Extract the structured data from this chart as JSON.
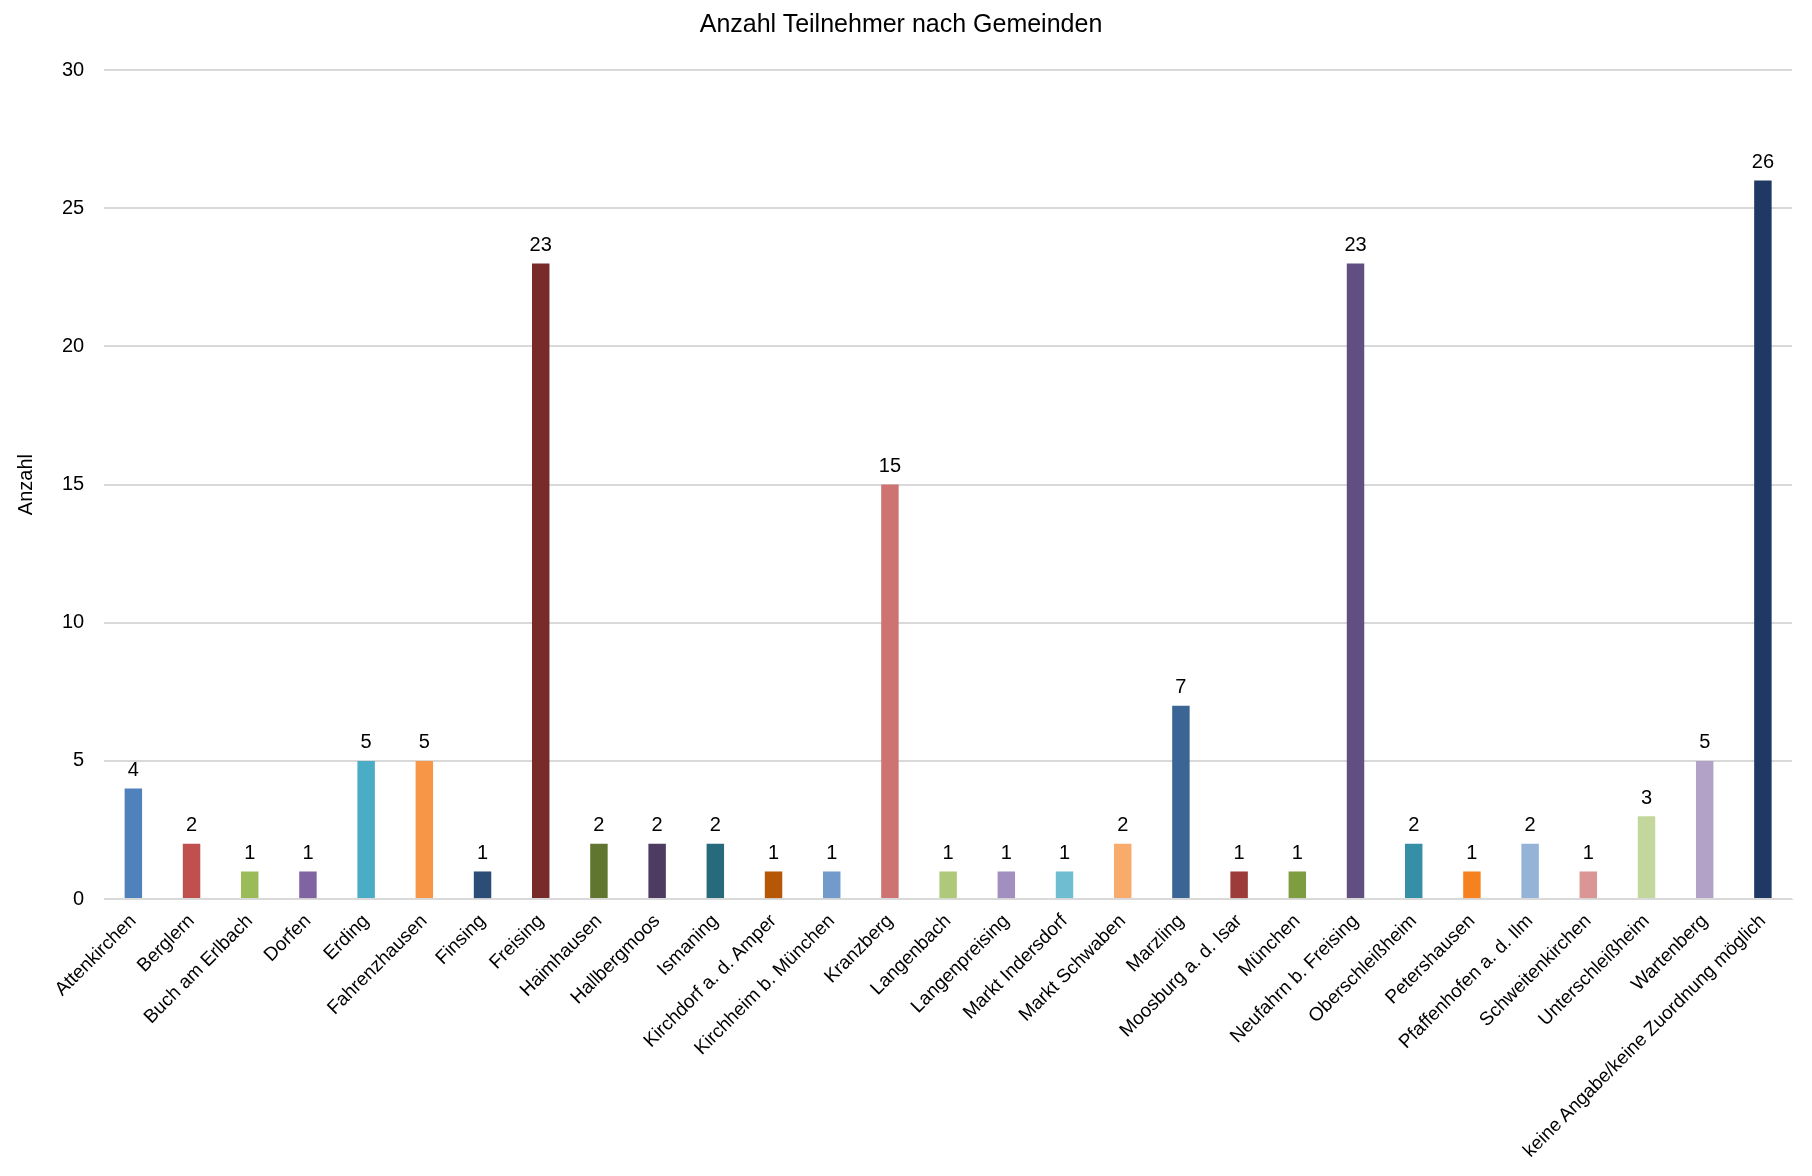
{
  "chart_data": {
    "type": "bar",
    "title": "Anzahl Teilnehmer nach Gemeinden",
    "ylabel": "Anzahl",
    "categories": [
      "Attenkirchen",
      "Berglern",
      "Buch am Erlbach",
      "Dorfen",
      "Erding",
      "Fahrenzhausen",
      "Finsing",
      "Freising",
      "Haimhausen",
      "Hallbergmoos",
      "Ismaning",
      "Kirchdorf a. d. Amper",
      "Kirchheim b. München",
      "Kranzberg",
      "Langenbach",
      "Langenpreising",
      "Markt Indersdorf",
      "Markt Schwaben",
      "Marzling",
      "Moosburg a. d. Isar",
      "München",
      "Neufahrn b. Freising",
      "Oberschleißheim",
      "Petershausen",
      "Pfaffenhofen a. d. Ilm",
      "Schweitenkirchen",
      "Unterschleißheim",
      "Wartenberg",
      "keine Angabe/keine Zuordnung möglich"
    ],
    "values": [
      4,
      2,
      1,
      1,
      5,
      5,
      1,
      23,
      2,
      2,
      2,
      1,
      1,
      15,
      1,
      1,
      1,
      2,
      7,
      1,
      1,
      23,
      2,
      1,
      2,
      1,
      3,
      5,
      26
    ],
    "colors": [
      "#4f81bd",
      "#c0504d",
      "#9bbb59",
      "#8064a2",
      "#4bacc6",
      "#f79646",
      "#2c4d75",
      "#772c2a",
      "#5f7530",
      "#4d3b62",
      "#276a7c",
      "#b65708",
      "#729aca",
      "#cd7371",
      "#afc97a",
      "#a18fbf",
      "#6fbdd1",
      "#f9ab6b",
      "#3a6595",
      "#9c3b38",
      "#7e9c40",
      "#624f81",
      "#358fa6",
      "#f6821f",
      "#95b3d7",
      "#d99694",
      "#c3d69b",
      "#b2a2c7",
      "#1f3864"
    ],
    "ylim": [
      0,
      30
    ],
    "yticks": [
      0,
      5,
      10,
      15,
      20,
      25,
      30
    ],
    "grid": "y",
    "data_labels": true
  }
}
